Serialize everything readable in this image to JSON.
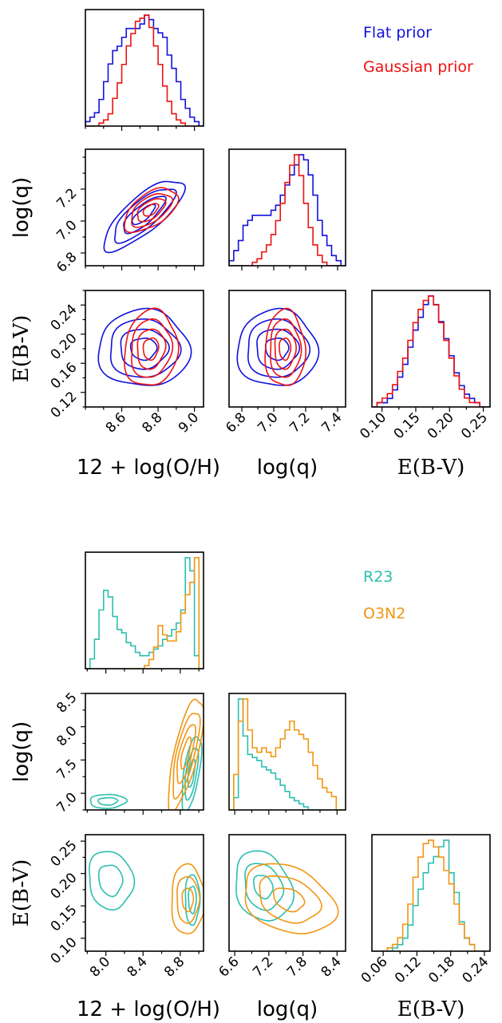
{
  "colors": {
    "flat": "#1111dd",
    "gauss": "#ee1111",
    "r23": "#2bbfb0",
    "o3n2": "#f29512"
  },
  "chart_data": [
    {
      "type": "corner",
      "legend": [
        {
          "label": "Flat prior",
          "color": "#1111dd"
        },
        {
          "label": "Gaussian prior",
          "color": "#ee1111"
        }
      ],
      "params": [
        {
          "label": "12 + log(O/H)",
          "range": [
            8.4,
            9.05
          ],
          "ticks": [
            8.6,
            8.8,
            9.0
          ],
          "ticklabels": [
            "8.6",
            "8.8",
            "9.0"
          ],
          "font": "sans"
        },
        {
          "label": "log(q)",
          "range": [
            6.72,
            7.45
          ],
          "ticks": [
            6.8,
            7.0,
            7.2,
            7.4
          ],
          "ticklabels": [
            "6.8",
            "7.0",
            "7.2",
            "7.4"
          ],
          "font": "sans"
        },
        {
          "label": "E(B-V)",
          "range": [
            0.085,
            0.26
          ],
          "ticks": [
            0.1,
            0.15,
            0.2,
            0.25
          ],
          "ticklabels": [
            "0.10",
            "0.15",
            "0.20",
            "0.25"
          ],
          "font": "serif"
        }
      ],
      "y_axis": {
        "1": {
          "ticks": [
            6.8,
            7.0,
            7.2
          ],
          "ticklabels": [
            "6.8",
            "7.0",
            "7.2"
          ]
        },
        "2": {
          "range": [
            0.1,
            0.26
          ],
          "ticks": [
            0.12,
            0.16,
            0.2,
            0.24
          ],
          "ticklabels": [
            "0.12",
            "0.16",
            "0.20",
            "0.24"
          ]
        }
      },
      "series": [
        {
          "name": "Flat prior",
          "color": "#1111dd",
          "hist": [
            {
              "edges": [
                8.4,
                9.05
              ],
              "values": [
                1,
                2,
                3,
                6,
                10,
                14,
                17,
                18,
                20,
                22,
                22,
                22,
                23,
                25,
                24,
                22,
                21,
                20,
                16,
                13,
                10,
                6,
                4,
                2,
                1,
                0
              ]
            },
            {
              "edges": [
                6.72,
                7.45
              ],
              "values": [
                1,
                3,
                5,
                8,
                9,
                10,
                10,
                10,
                10,
                11,
                12,
                14,
                16,
                18,
                20,
                22,
                21,
                18,
                14,
                9,
                6,
                4,
                2,
                1,
                0
              ]
            },
            {
              "edges": [
                0.085,
                0.26
              ],
              "values": [
                0,
                1,
                1,
                2,
                4,
                7,
                10,
                14,
                18,
                21,
                24,
                26,
                24,
                20,
                16,
                12,
                8,
                5,
                3,
                2,
                1,
                0,
                0
              ]
            }
          ],
          "contours": [
            {
              "x": 0,
              "y": 1,
              "center": [
                8.72,
                7.04
              ],
              "sd": [
                0.105,
                0.105
              ],
              "rho": 0.78,
              "levels": [
                0.6,
                1.1,
                1.6,
                2.1
              ]
            },
            {
              "x": 0,
              "y": 2,
              "center": [
                8.72,
                0.18
              ],
              "sd": [
                0.12,
                0.025
              ],
              "rho": 0.0,
              "levels": [
                0.6,
                1.1,
                1.6,
                2.1
              ]
            },
            {
              "x": 1,
              "y": 2,
              "center": [
                7.02,
                0.18
              ],
              "sd": [
                0.12,
                0.025
              ],
              "rho": 0.0,
              "levels": [
                0.6,
                1.1,
                1.6,
                2.1
              ]
            }
          ]
        },
        {
          "name": "Gaussian prior",
          "color": "#ee1111",
          "hist": [
            {
              "edges": [
                8.4,
                9.05
              ],
              "values": [
                0,
                0,
                0,
                1,
                2,
                4,
                9,
                14,
                20,
                26,
                30,
                34,
                35,
                36,
                32,
                26,
                20,
                13,
                8,
                4,
                2,
                1,
                0,
                0,
                0,
                0
              ]
            },
            {
              "edges": [
                6.72,
                7.45
              ],
              "values": [
                0,
                0,
                0,
                0,
                0,
                1,
                2,
                4,
                6,
                9,
                13,
                18,
                24,
                29,
                32,
                26,
                18,
                11,
                6,
                3,
                1,
                0,
                0,
                0,
                0
              ]
            },
            {
              "edges": [
                0.085,
                0.26
              ],
              "values": [
                0,
                1,
                2,
                3,
                5,
                8,
                11,
                15,
                19,
                22,
                24,
                25,
                23,
                19,
                15,
                11,
                7,
                4,
                2,
                1,
                1,
                0,
                0
              ]
            }
          ],
          "contours": [
            {
              "x": 0,
              "y": 1,
              "center": [
                8.76,
                7.07
              ],
              "sd": [
                0.07,
                0.065
              ],
              "rho": 0.55,
              "levels": [
                0.6,
                1.1,
                1.6,
                2.1
              ]
            },
            {
              "x": 0,
              "y": 2,
              "center": [
                8.76,
                0.18
              ],
              "sd": [
                0.07,
                0.025
              ],
              "rho": 0.1,
              "levels": [
                0.6,
                1.1,
                1.6,
                2.1
              ]
            },
            {
              "x": 1,
              "y": 2,
              "center": [
                7.07,
                0.18
              ],
              "sd": [
                0.06,
                0.025
              ],
              "rho": 0.0,
              "levels": [
                0.6,
                1.1,
                1.6,
                2.1
              ]
            }
          ]
        }
      ]
    },
    {
      "type": "corner",
      "legend": [
        {
          "label": "R23",
          "color": "#2bbfb0"
        },
        {
          "label": "O3N2",
          "color": "#f29512"
        }
      ],
      "params": [
        {
          "label": "12 + log(O/H)",
          "range": [
            7.78,
            9.05
          ],
          "ticks": [
            8.0,
            8.4,
            8.8
          ],
          "ticklabels": [
            "8.0",
            "8.4",
            "8.8"
          ],
          "font": "sans"
        },
        {
          "label": "log(q)",
          "range": [
            6.5,
            8.55
          ],
          "ticks": [
            6.6,
            7.2,
            7.8,
            8.4
          ],
          "ticklabels": [
            "6.6",
            "7.2",
            "7.8",
            "8.4"
          ],
          "font": "sans"
        },
        {
          "label": "E(B-V)",
          "range": [
            0.04,
            0.25
          ],
          "ticks": [
            0.06,
            0.12,
            0.18,
            0.24
          ],
          "ticklabels": [
            "0.06",
            "0.12",
            "0.18",
            "0.24"
          ],
          "font": "serif"
        }
      ],
      "y_axis": {
        "1": {
          "range": [
            6.75,
            8.5
          ],
          "ticks": [
            7.0,
            7.5,
            8.0,
            8.5
          ],
          "ticklabels": [
            "7.0",
            "7.5",
            "8.0",
            "8.5"
          ]
        },
        "2": {
          "range": [
            0.08,
            0.26
          ],
          "ticks": [
            0.1,
            0.15,
            0.2,
            0.25
          ],
          "ticklabels": [
            "0.10",
            "0.15",
            "0.20",
            "0.25"
          ]
        }
      },
      "series": [
        {
          "name": "R23",
          "color": "#2bbfb0",
          "hist": [
            {
              "edges": [
                7.78,
                9.05
              ],
              "values": [
                0,
                3,
                9,
                18,
                24,
                22,
                16,
                12,
                11,
                8,
                7,
                5,
                4,
                4,
                5,
                6,
                7,
                9,
                10,
                12,
                14,
                18,
                34,
                30,
                4,
                0
              ]
            },
            {
              "edges": [
                6.5,
                8.55
              ],
              "values": [
                0,
                4,
                36,
                24,
                18,
                17,
                16,
                14,
                13,
                12,
                10,
                8,
                6,
                4,
                3,
                2,
                1,
                0,
                0,
                0,
                0,
                0,
                0,
                0,
                0
              ]
            },
            {
              "edges": [
                0.04,
                0.25
              ],
              "values": [
                0,
                0,
                0,
                0,
                1,
                2,
                4,
                8,
                14,
                19,
                24,
                27,
                29,
                32,
                34,
                24,
                18,
                9,
                4,
                2,
                0,
                0,
                0
              ]
            }
          ],
          "contours": [
            {
              "x": 0,
              "y": 1,
              "center": [
                8.02,
                6.88
              ],
              "sd": [
                0.13,
                0.07
              ],
              "rho": 0.05,
              "levels": [
                0.8,
                1.5
              ]
            },
            {
              "x": 0,
              "y": 1,
              "center": [
                8.92,
                7.3
              ],
              "sd": [
                0.055,
                0.3
              ],
              "rho": 0.6,
              "levels": [
                0.7,
                1.3,
                1.9
              ]
            },
            {
              "x": 0,
              "y": 2,
              "center": [
                8.05,
                0.19
              ],
              "sd": [
                0.16,
                0.03
              ],
              "rho": -0.1,
              "levels": [
                0.8,
                1.5
              ]
            },
            {
              "x": 0,
              "y": 2,
              "center": [
                8.93,
                0.16
              ],
              "sd": [
                0.06,
                0.03
              ],
              "rho": 0.0,
              "levels": [
                0.7,
                1.3
              ]
            },
            {
              "x": 1,
              "y": 2,
              "center": [
                7.1,
                0.18
              ],
              "sd": [
                0.28,
                0.03
              ],
              "rho": -0.2,
              "levels": [
                0.6,
                1.2,
                1.8
              ]
            }
          ]
        },
        {
          "name": "O3N2",
          "color": "#f29512",
          "hist": [
            {
              "edges": [
                7.78,
                9.05
              ],
              "values": [
                0,
                0,
                0,
                0,
                0,
                0,
                0,
                0,
                0,
                0,
                0,
                0,
                0,
                1,
                3,
                7,
                14,
                11,
                9,
                9,
                12,
                18,
                24,
                28,
                36,
                0
              ]
            },
            {
              "edges": [
                6.5,
                8.55
              ],
              "values": [
                0,
                8,
                20,
                25,
                18,
                14,
                13,
                14,
                13,
                12,
                14,
                16,
                18,
                20,
                18,
                17,
                16,
                13,
                10,
                7,
                5,
                4,
                3,
                0,
                0
              ]
            },
            {
              "edges": [
                0.04,
                0.25
              ],
              "values": [
                0,
                0,
                0,
                1,
                2,
                4,
                8,
                14,
                22,
                28,
                32,
                33,
                31,
                28,
                24,
                20,
                14,
                8,
                4,
                2,
                0,
                0,
                0
              ]
            }
          ],
          "contours": [
            {
              "x": 0,
              "y": 1,
              "center": [
                8.86,
                7.6
              ],
              "sd": [
                0.09,
                0.4
              ],
              "rho": 0.72,
              "levels": [
                0.6,
                1.1,
                1.6,
                2.1
              ]
            },
            {
              "x": 0,
              "y": 2,
              "center": [
                8.88,
                0.16
              ],
              "sd": [
                0.1,
                0.03
              ],
              "rho": 0.0,
              "levels": [
                0.6,
                1.2,
                1.8
              ]
            },
            {
              "x": 1,
              "y": 2,
              "center": [
                7.55,
                0.16
              ],
              "sd": [
                0.45,
                0.03
              ],
              "rho": -0.3,
              "levels": [
                0.6,
                1.2,
                1.8
              ]
            }
          ]
        }
      ]
    }
  ]
}
